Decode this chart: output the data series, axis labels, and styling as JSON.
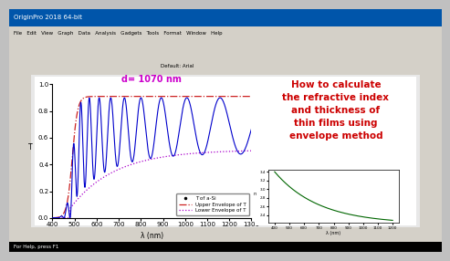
{
  "title": "d= 1070 nm",
  "title_color": "#cc00cc",
  "xlabel": "λ (nm)",
  "ylabel": "T",
  "xlim": [
    400,
    1300
  ],
  "ylim": [
    0.0,
    1.0
  ],
  "xticks": [
    400,
    500,
    600,
    700,
    800,
    900,
    1000,
    1100,
    1200,
    1300
  ],
  "yticks": [
    0.0,
    0.2,
    0.4,
    0.6,
    0.8,
    1.0
  ],
  "bg_outer": "#c0c0c0",
  "bg_toolbar": "#d4d0c8",
  "bg_white_area": "#f8f8f8",
  "bg_plot_area": "#ffffff",
  "right_text": "How to calculate\nthe refractive index\nand thickness of\nthin films using\nenvelope method",
  "right_text_color": "#cc0000",
  "legend_labels": [
    "T of a-Si",
    "Upper Envelope of T",
    "Lower Envelope of T"
  ],
  "main_line_color": "#0000cc",
  "upper_env_color": "#cc2222",
  "lower_env_color": "#aa00cc",
  "inset_line_color": "#006600",
  "sidebar_color": "#d4d0c8",
  "statusbar_color": "#000000"
}
